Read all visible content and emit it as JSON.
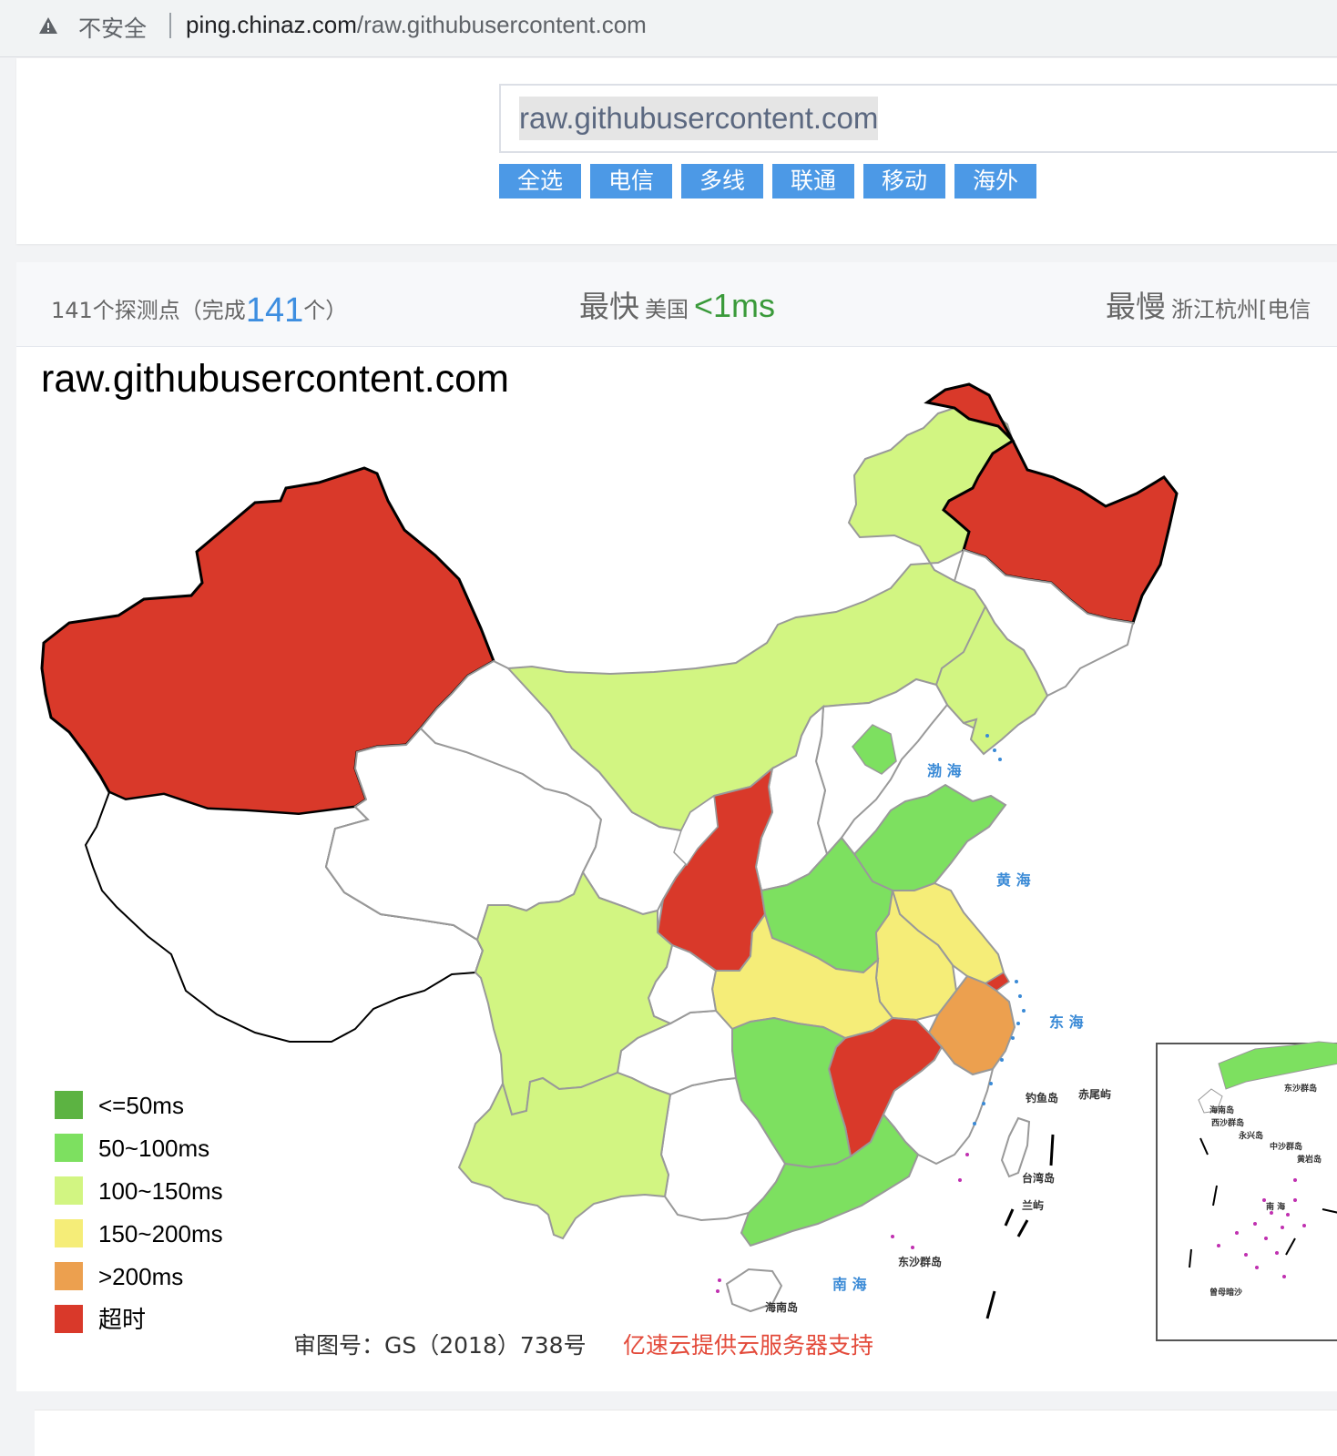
{
  "browser": {
    "security_label": "不安全",
    "url_host": "ping.chinaz.com",
    "url_path": "/raw.githubusercontent.com"
  },
  "search": {
    "domain_value": "raw.githubusercontent.com",
    "isp_buttons": [
      "全选",
      "电信",
      "多线",
      "联通",
      "移动",
      "海外"
    ]
  },
  "stats": {
    "points_prefix": "141个探测点（完成",
    "points_done": "141",
    "points_suffix": "个）",
    "fastest_label": "最快",
    "fastest_location": "美国",
    "fastest_ms": "<1ms",
    "slowest_label": "最慢",
    "slowest_location": "浙江杭州[电信"
  },
  "map": {
    "title": "raw.githubusercontent.com",
    "legend": [
      {
        "label": "<=50ms",
        "color": "#5cb342"
      },
      {
        "label": "50~100ms",
        "color": "#7de060"
      },
      {
        "label": "100~150ms",
        "color": "#d2f582"
      },
      {
        "label": "150~200ms",
        "color": "#f5ed78"
      },
      {
        "label": ">200ms",
        "color": "#eca04f"
      },
      {
        "label": "超时",
        "color": "#d9392a"
      }
    ],
    "approval_no": "审图号：GS（2018）738号",
    "sponsor": "亿速云提供云服务器支持",
    "sea_labels": [
      "渤 海",
      "黄 海",
      "东 海",
      "南 海"
    ],
    "island_labels": [
      "台湾岛",
      "钓鱼岛",
      "赤尾屿",
      "兰屿",
      "东沙群岛",
      "海南岛"
    ],
    "inset_labels": [
      "东沙群岛",
      "海南岛",
      "西沙群岛",
      "永兴岛",
      "中沙群岛",
      "黄岩岛",
      "南 海",
      "曾母暗沙"
    ]
  }
}
